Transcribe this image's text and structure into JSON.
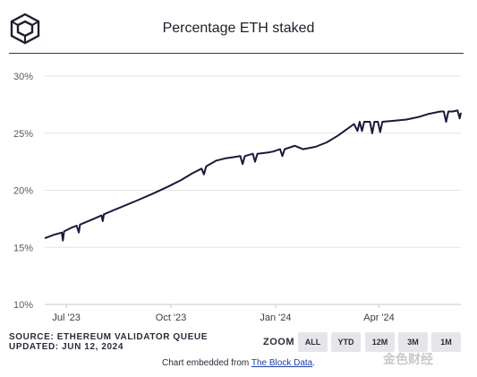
{
  "header": {
    "title": "Percentage ETH staked",
    "logo_icon": "the-block-cube-logo"
  },
  "footer": {
    "source": "SOURCE: ETHEREUM VALIDATOR QUEUE",
    "updated": "UPDATED: JUN 12, 2024",
    "zoom_label": "ZOOM",
    "zoom_buttons": [
      "ALL",
      "YTD",
      "12M",
      "3M",
      "1M"
    ],
    "embed_prefix": "Chart embedded from ",
    "embed_link": "The Block Data",
    "embed_suffix": ".",
    "watermark": "金色财经"
  },
  "colors": {
    "line": "#1a1a3e",
    "rule": "#3b3358",
    "grid": "#e4e4ea"
  },
  "chart_data": {
    "type": "line",
    "title": "Percentage ETH staked",
    "y_ticks": [
      "10%",
      "15%",
      "20%",
      "25%",
      "30%"
    ],
    "ylim": [
      10,
      30
    ],
    "x_ticks": [
      {
        "label": "Jul '23",
        "date": "2023-07-01"
      },
      {
        "label": "Oct '23",
        "date": "2023-10-01"
      },
      {
        "label": "Jan '24",
        "date": "2024-01-01"
      },
      {
        "label": "Apr '24",
        "date": "2024-04-01"
      }
    ],
    "xlim": [
      "2023-06-12",
      "2024-06-12"
    ],
    "grid": true,
    "series": [
      {
        "values": [
          [
            "2023-06-12",
            15.8
          ],
          [
            "2023-06-20",
            16.1
          ],
          [
            "2023-06-27",
            16.3
          ],
          [
            "2023-06-28",
            15.6
          ],
          [
            "2023-06-29",
            16.4
          ],
          [
            "2023-07-05",
            16.7
          ],
          [
            "2023-07-10",
            16.9
          ],
          [
            "2023-07-12",
            16.3
          ],
          [
            "2023-07-13",
            17.0
          ],
          [
            "2023-07-25",
            17.5
          ],
          [
            "2023-08-01",
            17.8
          ],
          [
            "2023-08-02",
            17.3
          ],
          [
            "2023-08-03",
            17.9
          ],
          [
            "2023-08-15",
            18.4
          ],
          [
            "2023-09-01",
            19.1
          ],
          [
            "2023-09-15",
            19.7
          ],
          [
            "2023-09-28",
            20.3
          ],
          [
            "2023-10-10",
            20.9
          ],
          [
            "2023-10-20",
            21.5
          ],
          [
            "2023-10-28",
            21.9
          ],
          [
            "2023-10-30",
            21.4
          ],
          [
            "2023-11-01",
            22.1
          ],
          [
            "2023-11-10",
            22.6
          ],
          [
            "2023-11-18",
            22.8
          ],
          [
            "2023-11-25",
            22.9
          ],
          [
            "2023-12-01",
            23.0
          ],
          [
            "2023-12-03",
            22.3
          ],
          [
            "2023-12-05",
            23.0
          ],
          [
            "2023-12-12",
            23.2
          ],
          [
            "2023-12-14",
            22.5
          ],
          [
            "2023-12-16",
            23.2
          ],
          [
            "2023-12-25",
            23.3
          ],
          [
            "2023-12-30",
            23.4
          ],
          [
            "2024-01-05",
            23.6
          ],
          [
            "2024-01-07",
            23.0
          ],
          [
            "2024-01-09",
            23.6
          ],
          [
            "2024-01-15",
            23.8
          ],
          [
            "2024-01-18",
            23.9
          ],
          [
            "2024-01-25",
            23.6
          ],
          [
            "2024-02-05",
            23.8
          ],
          [
            "2024-02-15",
            24.2
          ],
          [
            "2024-02-25",
            24.8
          ],
          [
            "2024-03-03",
            25.3
          ],
          [
            "2024-03-10",
            25.8
          ],
          [
            "2024-03-13",
            25.2
          ],
          [
            "2024-03-15",
            26.0
          ],
          [
            "2024-03-17",
            25.2
          ],
          [
            "2024-03-19",
            26.0
          ],
          [
            "2024-03-24",
            26.0
          ],
          [
            "2024-03-26",
            25.0
          ],
          [
            "2024-03-28",
            26.0
          ],
          [
            "2024-03-31",
            26.0
          ],
          [
            "2024-04-02",
            25.1
          ],
          [
            "2024-04-04",
            26.0
          ],
          [
            "2024-04-15",
            26.1
          ],
          [
            "2024-04-25",
            26.2
          ],
          [
            "2024-05-05",
            26.4
          ],
          [
            "2024-05-15",
            26.7
          ],
          [
            "2024-05-25",
            26.9
          ],
          [
            "2024-05-28",
            26.9
          ],
          [
            "2024-05-30",
            26.0
          ],
          [
            "2024-06-01",
            26.9
          ],
          [
            "2024-06-05",
            26.9
          ],
          [
            "2024-06-09",
            27.0
          ],
          [
            "2024-06-11",
            26.3
          ],
          [
            "2024-06-12",
            26.8
          ]
        ]
      }
    ]
  }
}
